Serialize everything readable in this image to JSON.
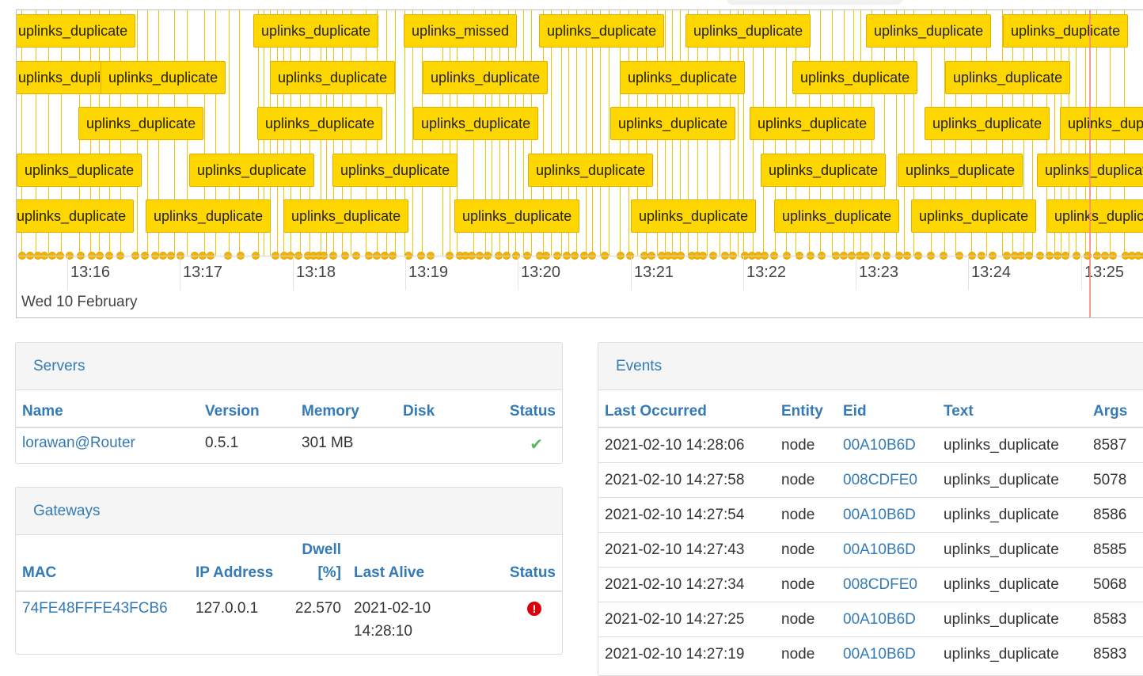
{
  "timeline": {
    "date_label": "Wed 10 February",
    "ticks": [
      "13:16",
      "13:17",
      "13:18",
      "13:19",
      "13:20",
      "13:21",
      "13:22",
      "13:23",
      "13:24",
      "13:25"
    ],
    "event_rows": [
      [
        "uplinks_duplicate",
        "uplinks_duplicate",
        "uplinks_missed",
        "uplinks_duplicate",
        "uplinks_duplicate",
        "uplinks_duplicate",
        "uplinks_duplicate"
      ],
      [
        "uplinks_duplicate",
        "uplinks_duplicate",
        "uplinks_duplicate",
        "uplinks_duplicate",
        "uplinks_duplicate",
        "uplinks_duplicate",
        "uplinks_duplicate"
      ],
      [
        "uplinks_duplicate",
        "uplinks_duplicate",
        "uplinks_duplicate",
        "uplinks_duplicate",
        "uplinks_duplicate",
        "uplinks_duplicate",
        "uplinks_duplicate"
      ],
      [
        "uplinks_duplicate",
        "uplinks_duplicate",
        "uplinks_duplicate",
        "uplinks_duplicate",
        "uplinks_duplicate",
        "uplinks_duplicate",
        "uplinks_duplicate"
      ],
      [
        "uplinks_duplicate",
        "uplinks_duplicate",
        "uplinks_duplicate",
        "uplinks_duplicate",
        "uplinks_duplicate",
        "uplinks_duplicate",
        "uplinks_duplicate",
        "uplinks_duplicate"
      ]
    ],
    "event_color": "#ffd700",
    "now_marker_color": "#ff8a7a"
  },
  "servers": {
    "title": "Servers",
    "columns": [
      "Name",
      "Version",
      "Memory",
      "Disk",
      "Status"
    ],
    "rows": [
      {
        "name": "lorawan@Router",
        "version": "0.5.1",
        "memory": "301 MB",
        "disk": "",
        "status": "check-icon"
      }
    ]
  },
  "gateways": {
    "title": "Gateways",
    "columns": [
      "MAC",
      "IP Address",
      "Dwell [%]",
      "Last Alive",
      "Status"
    ],
    "rows": [
      {
        "mac": "74FE48FFFE43FCB6",
        "ip": "127.0.0.1",
        "dwell": "22.570",
        "last_alive": "2021-02-10 14:28:10",
        "status": "alert-icon"
      }
    ]
  },
  "events": {
    "title": "Events",
    "columns": [
      "Last Occurred",
      "Entity",
      "Eid",
      "Text",
      "Args"
    ],
    "rows": [
      {
        "last": "2021-02-10 14:28:06",
        "entity": "node",
        "eid": "00A10B6D",
        "text": "uplinks_duplicate",
        "args": "8587"
      },
      {
        "last": "2021-02-10 14:27:58",
        "entity": "node",
        "eid": "008CDFE0",
        "text": "uplinks_duplicate",
        "args": "5078"
      },
      {
        "last": "2021-02-10 14:27:54",
        "entity": "node",
        "eid": "00A10B6D",
        "text": "uplinks_duplicate",
        "args": "8586"
      },
      {
        "last": "2021-02-10 14:27:43",
        "entity": "node",
        "eid": "00A10B6D",
        "text": "uplinks_duplicate",
        "args": "8585"
      },
      {
        "last": "2021-02-10 14:27:34",
        "entity": "node",
        "eid": "008CDFE0",
        "text": "uplinks_duplicate",
        "args": "5068"
      },
      {
        "last": "2021-02-10 14:27:25",
        "entity": "node",
        "eid": "00A10B6D",
        "text": "uplinks_duplicate",
        "args": "8583"
      },
      {
        "last": "2021-02-10 14:27:19",
        "entity": "node",
        "eid": "00A10B6D",
        "text": "uplinks_duplicate",
        "args": "8583"
      }
    ]
  }
}
